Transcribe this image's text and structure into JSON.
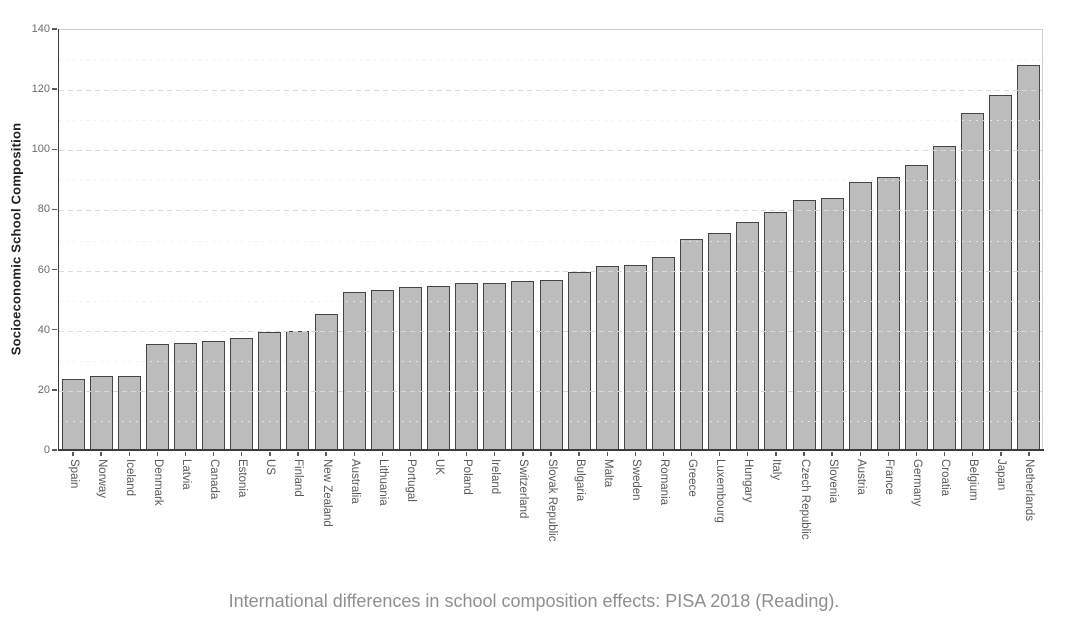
{
  "chart_data": {
    "type": "bar",
    "title": "",
    "caption": "International differences in school composition effects: PISA 2018 (Reading).",
    "xlabel": "",
    "ylabel": "Socioeconomic School Composition",
    "ylim": [
      0,
      140
    ],
    "yticks": [
      0,
      20,
      40,
      60,
      80,
      100,
      120,
      140
    ],
    "grid": "horizontal, dashed major every 20, faint minor every 10, drawn over bars",
    "legend": "none",
    "categories": [
      "Spain",
      "Norway",
      "Iceland",
      "Denmark",
      "Latvia",
      "Canada",
      "Estonia",
      "US",
      "Finland",
      "New Zealand",
      "Australia",
      "Lithuania",
      "Portugal",
      "UK",
      "Poland",
      "Ireland",
      "Switzerland",
      "Slovak Republic",
      "Bulgaria",
      "Malta",
      "Sweden",
      "Romania",
      "Greece",
      "Luxembourg",
      "Hungary",
      "Italy",
      "Czech Republic",
      "Slovenia",
      "Austria",
      "France",
      "Germany",
      "Croatia",
      "Belgium",
      "Japan",
      "Netherlands"
    ],
    "values": [
      24,
      25,
      25,
      35.5,
      36,
      36.5,
      37.5,
      39.5,
      40,
      45.5,
      53,
      53.5,
      54.5,
      55,
      56,
      56,
      56.5,
      57,
      59.5,
      61.5,
      62,
      64.5,
      70.5,
      72.5,
      76,
      79.5,
      83.5,
      84,
      89.5,
      91,
      95,
      101.5,
      112.5,
      118.5,
      128.5
    ],
    "style": {
      "bar_fill": "#bcbcbc",
      "bar_border": "#454545",
      "grid_major_color": "#d9d9d9",
      "grid_minor_color": "#ececec",
      "axis_line_color": "#3c3c3c",
      "panel_border_color": "#cfcfcf",
      "tick_label_color": "#5f5f5f",
      "y_title_color": "#1f1f1f",
      "caption_color": "#8f8f8f",
      "background": "#ffffff"
    }
  }
}
